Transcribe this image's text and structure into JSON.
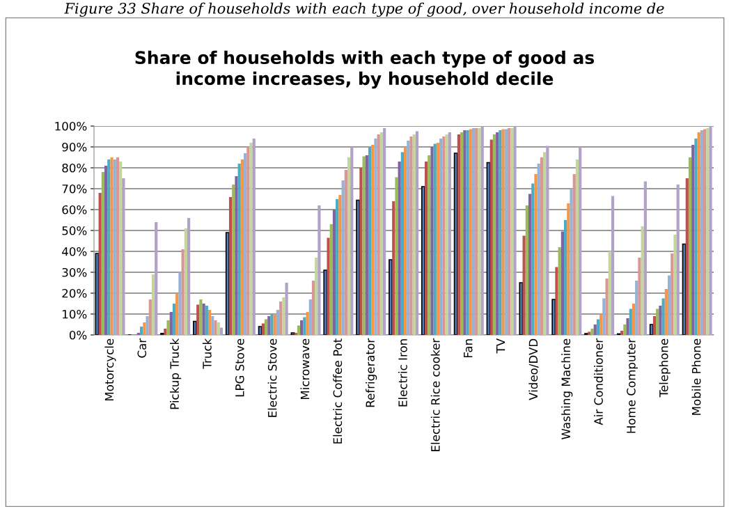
{
  "chart_data": {
    "type": "bar",
    "title": "Share of households with each type of good as\nincome increases, by household decile",
    "annotations": [
      "Figure 33 Share of households with each type of good, over household income de"
    ],
    "categories": [
      "Motorcycle",
      "Car",
      "Pickup Truck",
      "Truck",
      "LPG Stove",
      "Electric Stove",
      "Microwave",
      "Electric Coffee Pot",
      "Refrigerator",
      "Electric Iron",
      "Electric Rice cooker",
      "Fan",
      "TV",
      "Video/DVD",
      "Washing Machine",
      "Air Conditioner",
      "Home Computer",
      "Telephone",
      "Mobile Phone"
    ],
    "series": [
      {
        "color": "#4f81bd",
        "values": [
          39,
          null,
          0.7,
          6.5,
          49,
          4,
          1,
          31,
          64.5,
          36,
          71,
          87,
          82.5,
          25,
          17,
          0.6,
          0.5,
          5,
          43.5
        ]
      },
      {
        "color": "#c0504d",
        "values": [
          68,
          null,
          3,
          14.5,
          66,
          5.5,
          1,
          46.5,
          80,
          64,
          83,
          96,
          93.5,
          47.5,
          32.5,
          1.5,
          2,
          9,
          75
        ]
      },
      {
        "color": "#9bbb59",
        "values": [
          78,
          null,
          7,
          17,
          72,
          7.5,
          4.5,
          53,
          85.5,
          75.5,
          86,
          97,
          96,
          62,
          42,
          3,
          5,
          12.5,
          85
        ]
      },
      {
        "color": "#8064a2",
        "values": [
          81,
          1,
          11,
          15,
          76,
          9,
          7,
          60,
          86,
          83,
          90,
          98,
          97,
          67.5,
          49.5,
          5,
          8,
          14,
          91
        ]
      },
      {
        "color": "#4bacc6",
        "values": [
          84,
          4,
          15,
          14,
          82,
          10,
          8.5,
          65,
          90,
          87.5,
          91.5,
          98,
          98,
          72.5,
          55,
          7.5,
          12.5,
          17.5,
          94
        ]
      },
      {
        "color": "#f79646",
        "values": [
          85,
          6,
          20,
          12,
          84,
          10,
          11,
          67,
          91,
          90,
          92,
          98.5,
          98.5,
          77,
          63,
          10,
          15,
          22,
          97
        ]
      },
      {
        "color": "#95b3d7",
        "values": [
          84,
          9,
          30,
          9,
          87,
          12,
          17,
          74,
          94,
          93,
          94,
          99,
          98.5,
          82,
          70,
          17.5,
          26,
          28.5,
          98
        ]
      },
      {
        "color": "#da9694",
        "values": [
          85,
          17,
          41,
          7,
          90,
          16,
          26,
          79,
          96,
          95,
          95,
          99,
          99,
          85,
          77,
          27,
          37,
          39,
          98.5
        ]
      },
      {
        "color": "#c3d69b",
        "values": [
          83,
          29,
          51,
          6,
          92,
          18,
          37,
          85,
          97,
          96,
          96,
          99,
          99,
          87.5,
          84,
          40,
          52,
          48,
          99
        ]
      },
      {
        "color": "#b3a2c7",
        "values": [
          75,
          54,
          56,
          3.5,
          94,
          25,
          62,
          90,
          99,
          97.5,
          97,
          100,
          100,
          90.5,
          90,
          66.5,
          73.5,
          72,
          100
        ]
      }
    ],
    "ylim": [
      0,
      100
    ],
    "yticks": [
      {
        "value": 0,
        "label": "0%"
      },
      {
        "value": 10,
        "label": "10%"
      },
      {
        "value": 20,
        "label": "20%"
      },
      {
        "value": 30,
        "label": "30%"
      },
      {
        "value": 40,
        "label": "40%"
      },
      {
        "value": 50,
        "label": "50%"
      },
      {
        "value": 60,
        "label": "60%"
      },
      {
        "value": 70,
        "label": "70%"
      },
      {
        "value": 80,
        "label": "80%"
      },
      {
        "value": 90,
        "label": "90%"
      },
      {
        "value": 100,
        "label": "100%"
      }
    ],
    "grid": "y",
    "legend": false
  }
}
